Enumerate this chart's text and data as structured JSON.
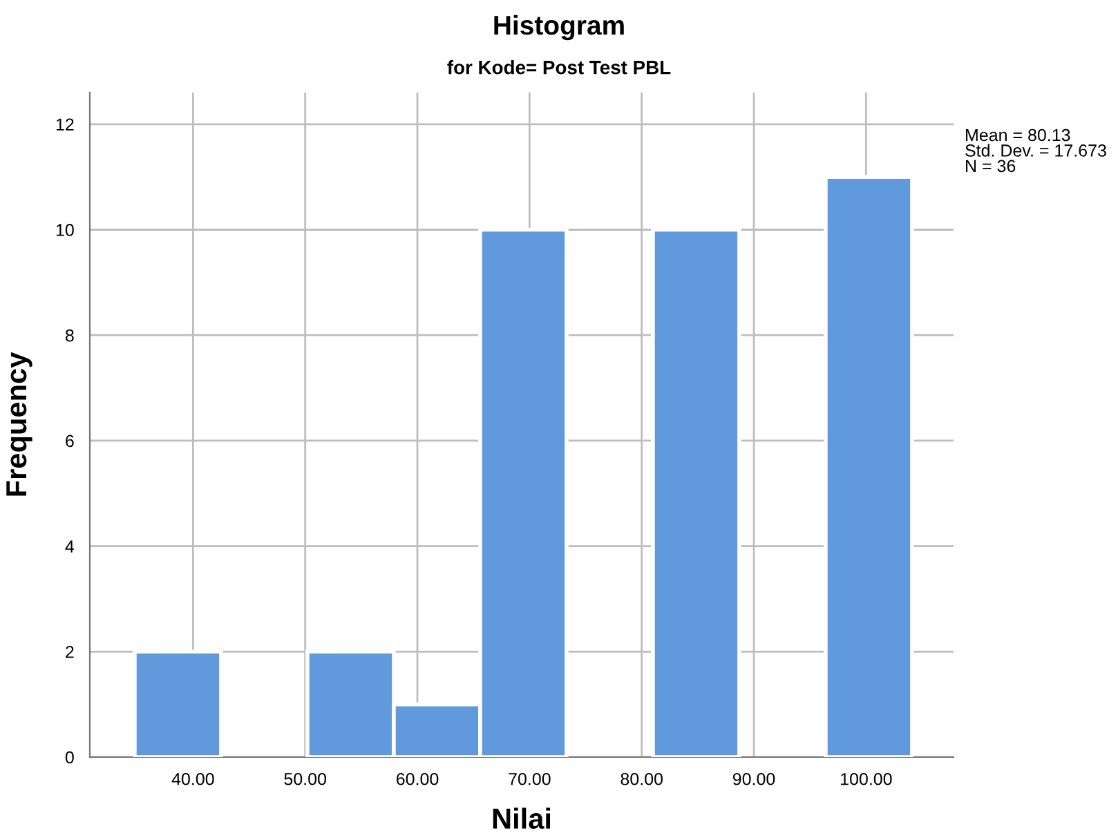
{
  "chart_data": {
    "type": "histogram",
    "title": "Histogram",
    "subtitle": "for Kode= Post Test PBL",
    "xlabel": "Nilai",
    "ylabel": "Frequency",
    "bins": [
      34.8,
      42.5,
      50.2,
      57.9,
      65.6,
      73.3,
      81.0,
      88.7,
      96.4,
      104.1
    ],
    "values": [
      2,
      0,
      2,
      1,
      10,
      0,
      10,
      0,
      11
    ],
    "color": "#6199dd",
    "xlim": [
      30.8,
      107.8
    ],
    "ylim": [
      0,
      12.6
    ],
    "xticks": [
      {
        "value": 40,
        "label": "40.00"
      },
      {
        "value": 50,
        "label": "50.00"
      },
      {
        "value": 60,
        "label": "60.00"
      },
      {
        "value": 70,
        "label": "70.00"
      },
      {
        "value": 80,
        "label": "80.00"
      },
      {
        "value": 90,
        "label": "90.00"
      },
      {
        "value": 100,
        "label": "100.00"
      }
    ],
    "yticks": [
      0,
      2,
      4,
      6,
      8,
      10,
      12
    ],
    "grid": true,
    "annotations": [
      "Mean = 80.13\nStd. Dev. = 17.673\nN = 36"
    ]
  }
}
